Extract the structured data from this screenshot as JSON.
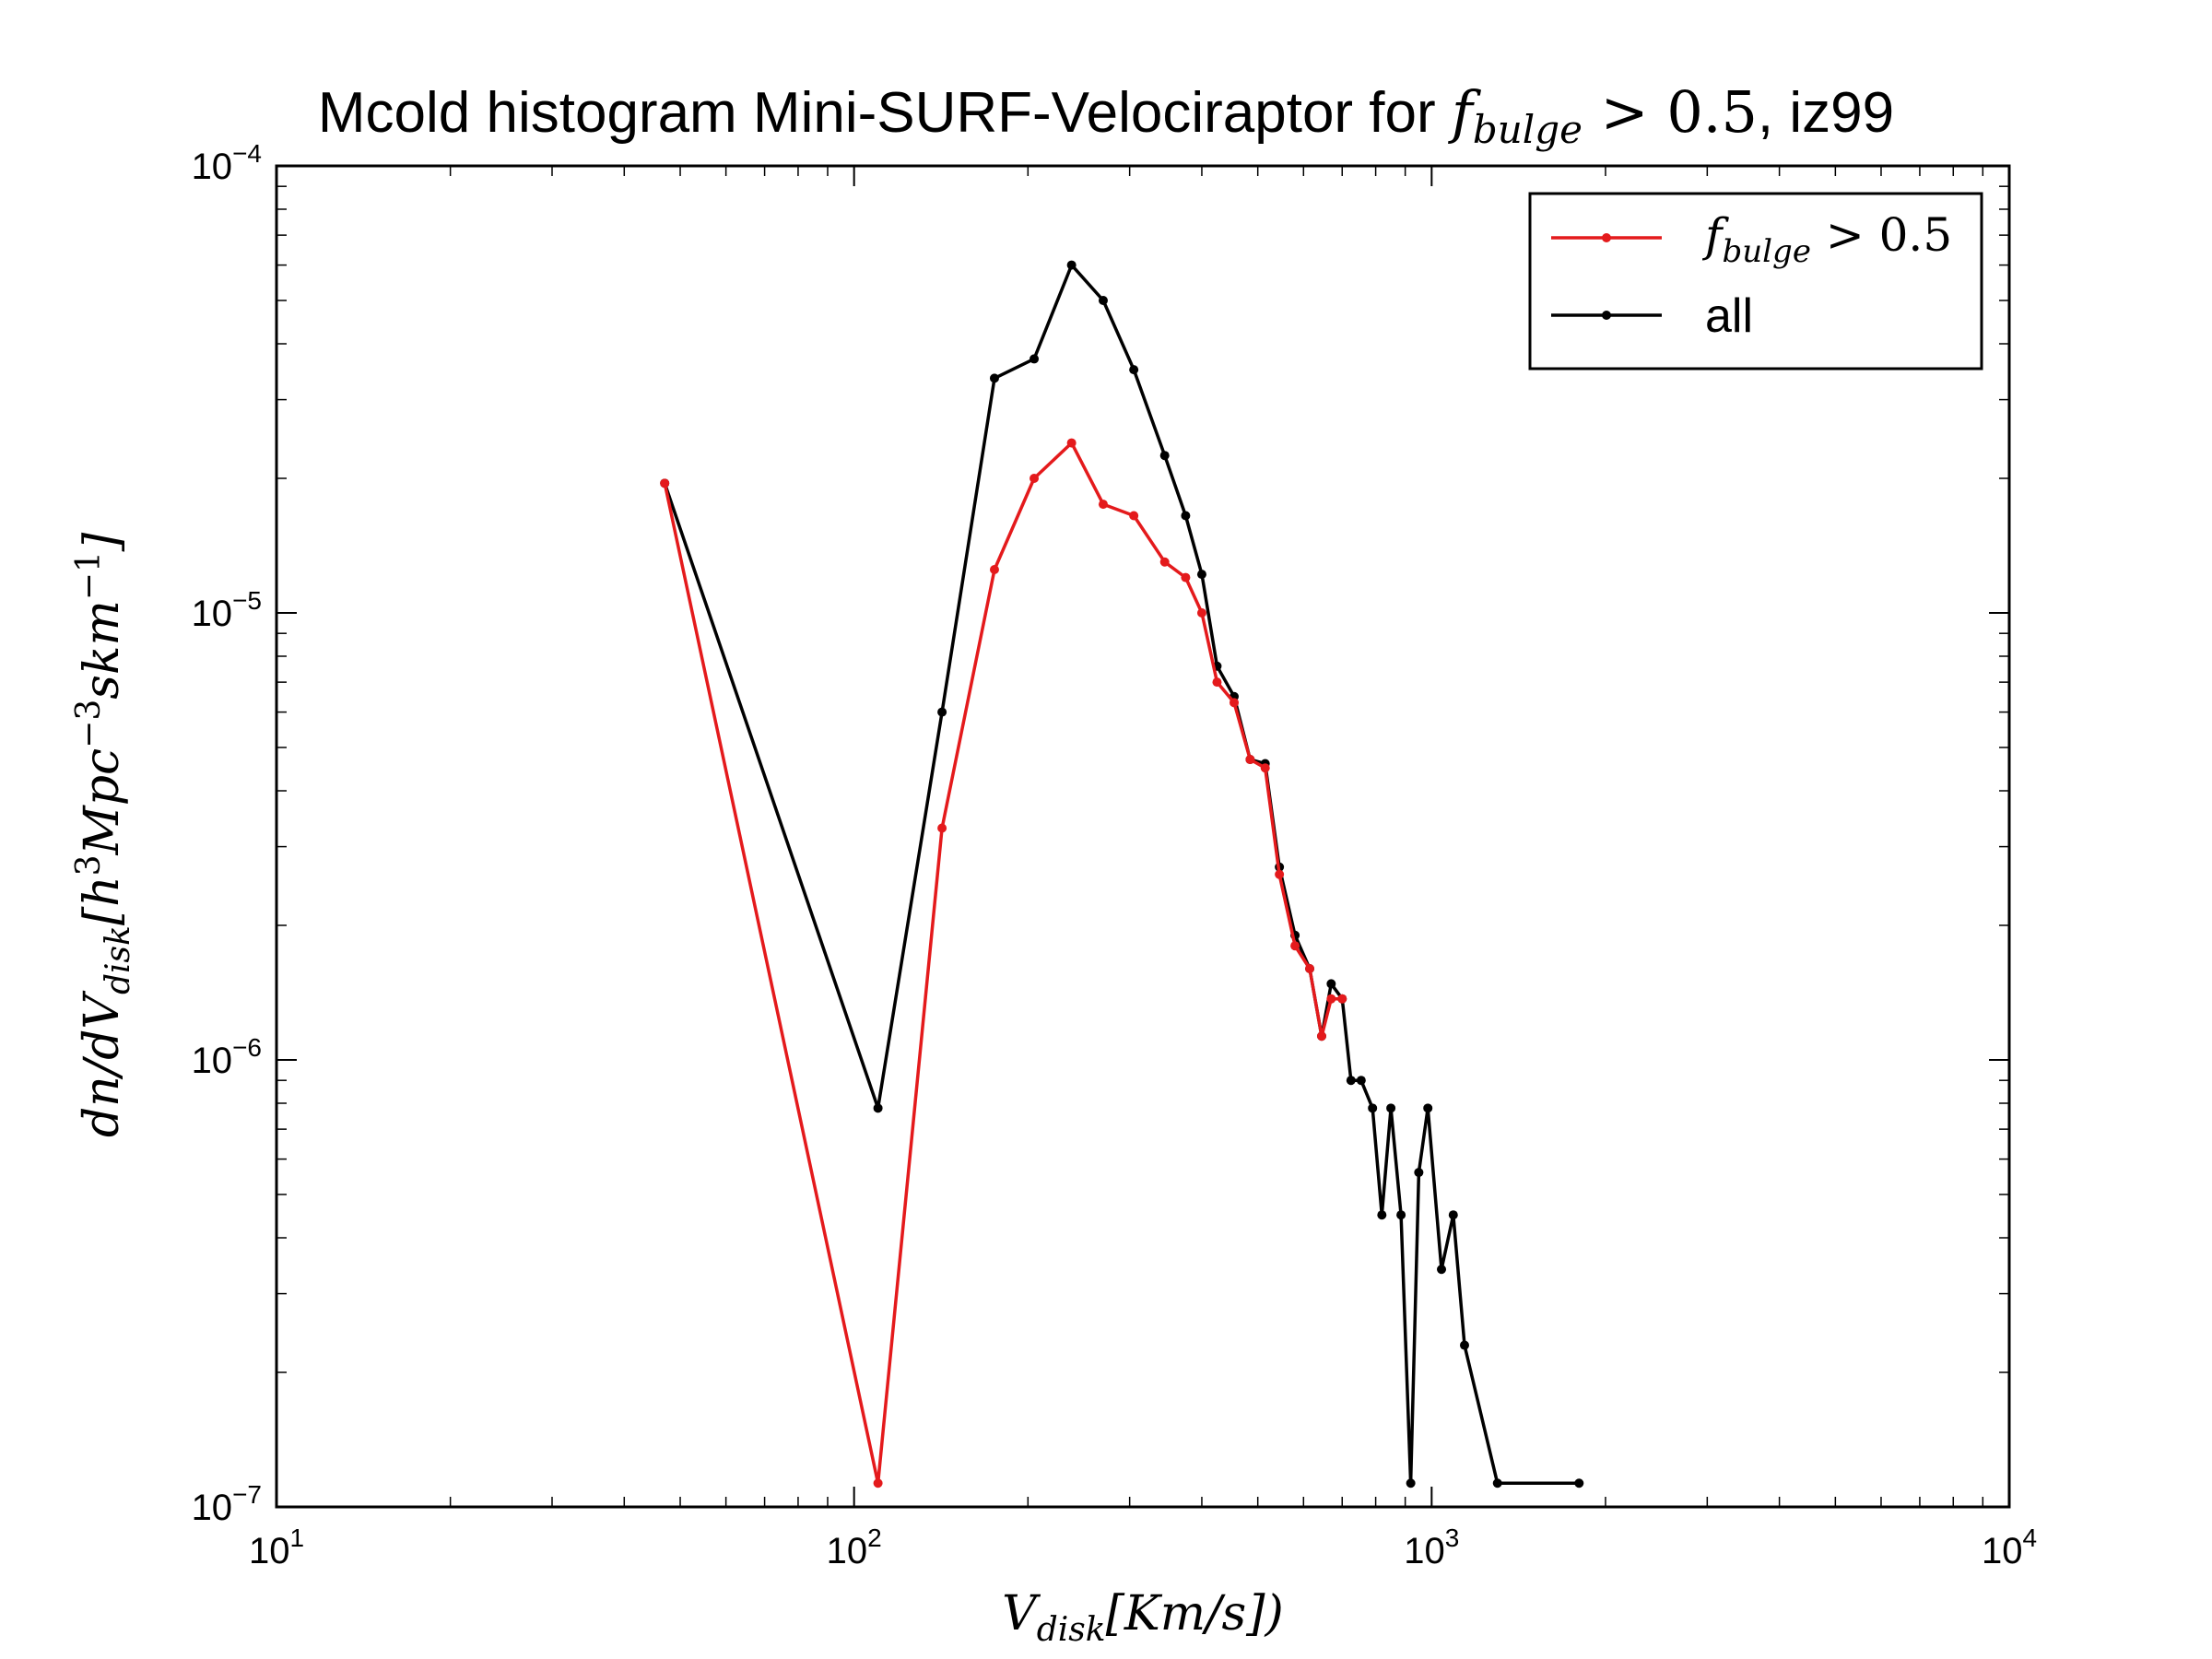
{
  "chart_data": {
    "type": "line",
    "title": {
      "prefix": "Mcold histogram Mini-SURF-Velociraptor for ",
      "math_base": "f",
      "math_sub": "bulge",
      "math_rest": " > 0.5",
      "suffix": ", iz99"
    },
    "xlabel": {
      "base": "V",
      "sub": "disk",
      "rest": "[Km/s])"
    },
    "ylabel": {
      "pre": "dn/dV",
      "sub": "disk",
      "a": "[h",
      "sup1": "3",
      "b": "Mpc",
      "sup2": "−3",
      "c": "skm",
      "sup3": "−1",
      "d": "]"
    },
    "x_scale": "log",
    "y_scale": "log",
    "xlim": [
      10,
      10000
    ],
    "ylim": [
      1e-07,
      0.0001
    ],
    "x_ticks": [
      {
        "value": 10,
        "base": "10",
        "exp": "1"
      },
      {
        "value": 100,
        "base": "10",
        "exp": "2"
      },
      {
        "value": 1000,
        "base": "10",
        "exp": "3"
      },
      {
        "value": 10000,
        "base": "10",
        "exp": "4"
      }
    ],
    "y_ticks": [
      {
        "value": 1e-07,
        "base": "10",
        "exp": "−7"
      },
      {
        "value": 1e-06,
        "base": "10",
        "exp": "−6"
      },
      {
        "value": 1e-05,
        "base": "10",
        "exp": "−5"
      },
      {
        "value": 0.0001,
        "base": "10",
        "exp": "−4"
      }
    ],
    "grid": false,
    "legend_position": "top-right",
    "series": [
      {
        "name": "all",
        "legend_plain": "all",
        "color": "#000000",
        "points": [
          [
            47,
            1.95e-05
          ],
          [
            110,
            7.8e-07
          ],
          [
            142,
            6e-06
          ],
          [
            175,
            3.35e-05
          ],
          [
            205,
            3.7e-05
          ],
          [
            238,
            6e-05
          ],
          [
            270,
            5e-05
          ],
          [
            305,
            3.5e-05
          ],
          [
            345,
            2.25e-05
          ],
          [
            375,
            1.65e-05
          ],
          [
            400,
            1.22e-05
          ],
          [
            425,
            7.6e-06
          ],
          [
            455,
            6.5e-06
          ],
          [
            485,
            4.7e-06
          ],
          [
            515,
            4.6e-06
          ],
          [
            545,
            2.7e-06
          ],
          [
            580,
            1.9e-06
          ],
          [
            615,
            1.6e-06
          ],
          [
            645,
            1.13e-06
          ],
          [
            670,
            1.48e-06
          ],
          [
            700,
            1.37e-06
          ],
          [
            725,
            9e-07
          ],
          [
            755,
            9e-07
          ],
          [
            790,
            7.8e-07
          ],
          [
            820,
            4.5e-07
          ],
          [
            850,
            7.8e-07
          ],
          [
            885,
            4.5e-07
          ],
          [
            920,
            1.13e-07
          ],
          [
            950,
            5.6e-07
          ],
          [
            985,
            7.8e-07
          ],
          [
            1040,
            3.4e-07
          ],
          [
            1090,
            4.5e-07
          ],
          [
            1140,
            2.3e-07
          ],
          [
            1300,
            1.13e-07
          ],
          [
            1800,
            1.13e-07
          ]
        ]
      },
      {
        "name": "f_bulge > 0.5",
        "legend_math_base": "f",
        "legend_math_sub": "bulge",
        "legend_math_rest": " > 0.5",
        "color": "#e41a1c",
        "points": [
          [
            47,
            1.95e-05
          ],
          [
            110,
            1.13e-07
          ],
          [
            142,
            3.3e-06
          ],
          [
            175,
            1.25e-05
          ],
          [
            205,
            2e-05
          ],
          [
            238,
            2.4e-05
          ],
          [
            270,
            1.75e-05
          ],
          [
            305,
            1.65e-05
          ],
          [
            345,
            1.3e-05
          ],
          [
            375,
            1.2e-05
          ],
          [
            400,
            1e-05
          ],
          [
            425,
            7e-06
          ],
          [
            455,
            6.3e-06
          ],
          [
            485,
            4.7e-06
          ],
          [
            515,
            4.5e-06
          ],
          [
            545,
            2.6e-06
          ],
          [
            580,
            1.8e-06
          ],
          [
            615,
            1.6e-06
          ],
          [
            645,
            1.13e-06
          ],
          [
            670,
            1.37e-06
          ],
          [
            700,
            1.37e-06
          ]
        ]
      }
    ]
  }
}
